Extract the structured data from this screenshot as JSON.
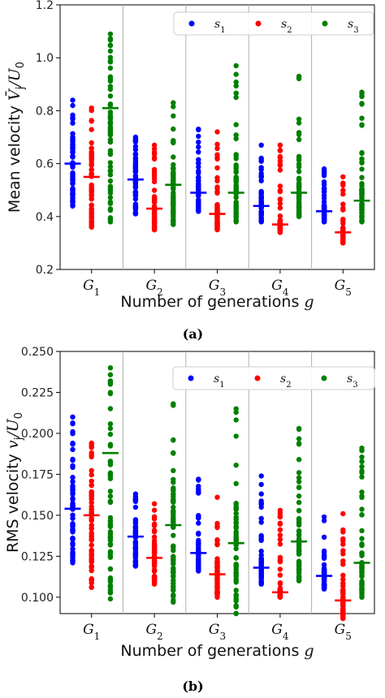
{
  "chart_data": [
    {
      "type": "scatter",
      "caption": "(a)",
      "title": "",
      "xlabel": "Number of generations g",
      "ylabel": "Mean velocity V̄j/U0",
      "ylim": [
        0.2,
        1.2
      ],
      "yticks": [
        "0.2",
        "0.4",
        "0.6",
        "0.8",
        "1.0",
        "1.2"
      ],
      "categories": [
        "G1",
        "G2",
        "G3",
        "G4",
        "G5"
      ],
      "legend_position": "top-right",
      "grid": "vertical separators between groups",
      "series": [
        {
          "name": "s1",
          "color": "#0000ff",
          "min": [
            0.44,
            0.41,
            0.42,
            0.38,
            0.38
          ],
          "max": [
            0.84,
            0.7,
            0.73,
            0.67,
            0.58
          ],
          "mean": [
            0.6,
            0.54,
            0.49,
            0.44,
            0.42
          ]
        },
        {
          "name": "s2",
          "color": "#ff0000",
          "min": [
            0.36,
            0.35,
            0.35,
            0.34,
            0.3
          ],
          "max": [
            0.81,
            0.67,
            0.72,
            0.67,
            0.55
          ],
          "mean": [
            0.55,
            0.43,
            0.41,
            0.37,
            0.34
          ]
        },
        {
          "name": "s3",
          "color": "#008000",
          "min": [
            0.38,
            0.37,
            0.38,
            0.4,
            0.38
          ],
          "max": [
            1.09,
            0.83,
            0.97,
            0.93,
            0.87
          ],
          "mean": [
            0.81,
            0.52,
            0.49,
            0.49,
            0.46
          ]
        }
      ]
    },
    {
      "type": "scatter",
      "caption": "(b)",
      "title": "",
      "xlabel": "Number of generations g",
      "ylabel": "RMS velocity vj/U0",
      "ylim": [
        0.09,
        0.25
      ],
      "yticks": [
        "0.100",
        "0.125",
        "0.150",
        "0.175",
        "0.200",
        "0.225",
        "0.250"
      ],
      "categories": [
        "G1",
        "G2",
        "G3",
        "G4",
        "G5"
      ],
      "legend_position": "top-right",
      "grid": "vertical separators between groups",
      "series": [
        {
          "name": "s1",
          "color": "#0000ff",
          "min": [
            0.121,
            0.119,
            0.116,
            0.108,
            0.105
          ],
          "max": [
            0.21,
            0.163,
            0.172,
            0.174,
            0.149
          ],
          "mean": [
            0.154,
            0.137,
            0.127,
            0.118,
            0.113
          ]
        },
        {
          "name": "s2",
          "color": "#ff0000",
          "min": [
            0.106,
            0.108,
            0.1,
            0.1,
            0.087
          ],
          "max": [
            0.194,
            0.157,
            0.161,
            0.153,
            0.151
          ],
          "mean": [
            0.15,
            0.124,
            0.114,
            0.103,
            0.098
          ]
        },
        {
          "name": "s3",
          "color": "#008000",
          "min": [
            0.099,
            0.097,
            0.09,
            0.11,
            0.1
          ],
          "max": [
            0.24,
            0.218,
            0.215,
            0.203,
            0.191
          ],
          "mean": [
            0.188,
            0.144,
            0.133,
            0.134,
            0.121
          ]
        }
      ]
    }
  ]
}
